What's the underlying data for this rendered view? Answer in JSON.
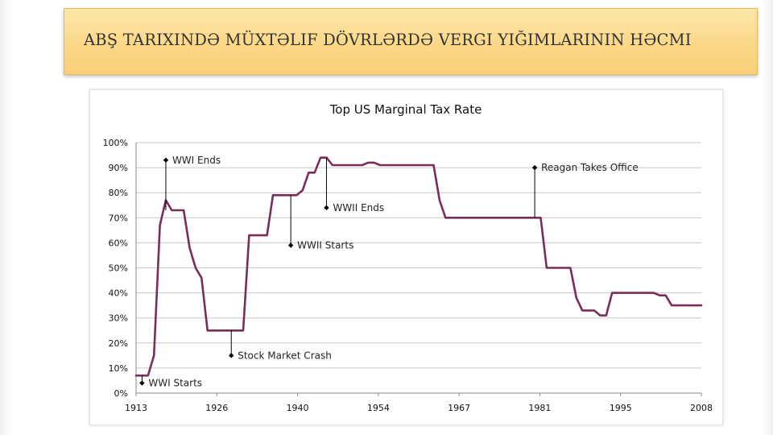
{
  "slide": {
    "title": "ABŞ TARIXINDƏ MÜXTƏLIF DÖVRLƏRDƏ VERGI YIĞIMLARININ HƏCMI",
    "accent_color": "#fbd889"
  },
  "chart_data": {
    "type": "line",
    "title": "Top US Marginal Tax Rate",
    "xlabel": "",
    "ylabel": "",
    "xlim": [
      1913,
      2008
    ],
    "ylim": [
      0,
      100
    ],
    "x_ticks": [
      "1913",
      "1926",
      "1940",
      "1954",
      "1967",
      "1981",
      "1995",
      "2008"
    ],
    "y_ticks": [
      "0%",
      "10%",
      "20%",
      "30%",
      "40%",
      "50%",
      "60%",
      "70%",
      "80%",
      "90%",
      "100%"
    ],
    "grid": true,
    "legend": "none",
    "series": [
      {
        "color": "#7b2d5a",
        "points": [
          [
            1913,
            7
          ],
          [
            1915,
            7
          ],
          [
            1916,
            15
          ],
          [
            1917,
            67
          ],
          [
            1918,
            77
          ],
          [
            1919,
            73
          ],
          [
            1921,
            73
          ],
          [
            1922,
            58
          ],
          [
            1923,
            50
          ],
          [
            1924,
            46
          ],
          [
            1925,
            25
          ],
          [
            1931,
            25
          ],
          [
            1932,
            63
          ],
          [
            1935,
            63
          ],
          [
            1936,
            79
          ],
          [
            1940,
            79
          ],
          [
            1941,
            81
          ],
          [
            1942,
            88
          ],
          [
            1943,
            88
          ],
          [
            1944,
            94
          ],
          [
            1945,
            94
          ],
          [
            1946,
            91
          ],
          [
            1951,
            91
          ],
          [
            1952,
            92
          ],
          [
            1953,
            92
          ],
          [
            1954,
            91
          ],
          [
            1963,
            91
          ],
          [
            1964,
            77
          ],
          [
            1965,
            70
          ],
          [
            1981,
            70
          ],
          [
            1982,
            50
          ],
          [
            1986,
            50
          ],
          [
            1987,
            38
          ],
          [
            1988,
            33
          ],
          [
            1990,
            33
          ],
          [
            1991,
            31
          ],
          [
            1992,
            31
          ],
          [
            1993,
            40
          ],
          [
            2000,
            40
          ],
          [
            2001,
            39
          ],
          [
            2002,
            39
          ],
          [
            2003,
            35
          ],
          [
            2008,
            35
          ]
        ]
      }
    ],
    "annotations": [
      {
        "label": "WWI Starts",
        "x": 1914,
        "y": 7,
        "marker_y": 4
      },
      {
        "label": "WWI Ends",
        "x": 1918,
        "y": 73,
        "marker_y": 93
      },
      {
        "label": "Stock Market Crash",
        "x": 1929,
        "y": 25,
        "marker_y": 15
      },
      {
        "label": "WWII Starts",
        "x": 1939,
        "y": 79,
        "marker_y": 59
      },
      {
        "label": "WWII Ends",
        "x": 1945,
        "y": 94,
        "marker_y": 74
      },
      {
        "label": "Reagan Takes Office",
        "x": 1980,
        "y": 70,
        "marker_y": 90
      }
    ]
  }
}
